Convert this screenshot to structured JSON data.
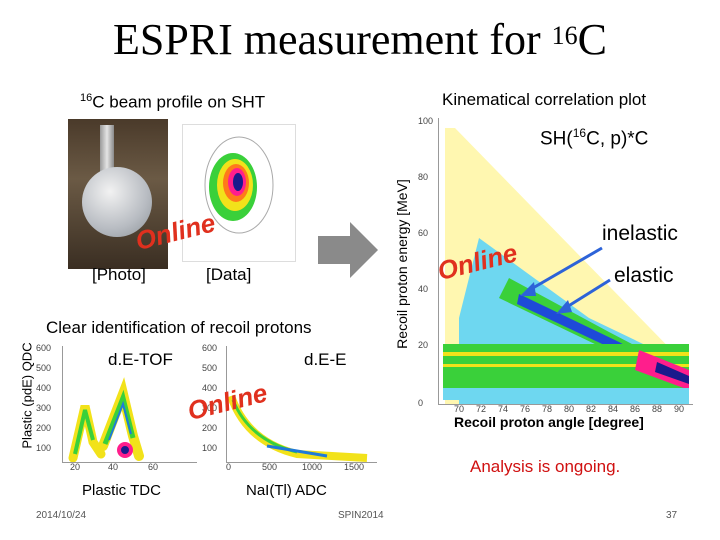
{
  "title": {
    "prefix": "ESPRI measurement for ",
    "sup": "16",
    "suffix": "C"
  },
  "left_top": {
    "heading_sup": "16",
    "heading_text": "C beam profile on SHT",
    "photo_label": "[Photo]",
    "data_label": "[Data]",
    "online": "Online"
  },
  "left_bottom": {
    "heading": "Clear identification of recoil protons",
    "y_axis": "Plastic (pdE) QDC",
    "plot1_label": "d.E-TOF",
    "plot2_label": "d.E-E",
    "online": "Online",
    "x_label_1": "Plastic TDC",
    "x_label_2": "NaI(Tl) ADC",
    "y_ticks": [
      "600",
      "500",
      "400",
      "300",
      "200",
      "100"
    ],
    "y_ticks_2": [
      "600",
      "500",
      "400",
      "300",
      "200",
      "100"
    ],
    "x_ticks_1": [
      "20",
      "40",
      "60"
    ],
    "x_ticks_2": [
      "0",
      "500",
      "1000",
      "1500"
    ]
  },
  "right": {
    "heading": "Kinematical correlation plot",
    "reaction": "SH(",
    "reaction_sup": "16",
    "reaction_mid": "C, p)*C",
    "y_axis": "Recoil proton energy [MeV]",
    "x_axis": "Recoil proton angle [degree]",
    "online": "Online",
    "inelastic": "inelastic",
    "elastic": "elastic",
    "y_ticks": [
      "100",
      "80",
      "60",
      "40",
      "20",
      "0"
    ],
    "x_ticks": [
      "70",
      "72",
      "74",
      "76",
      "78",
      "80",
      "82",
      "84",
      "86",
      "88",
      "90"
    ]
  },
  "status": "Analysis is ongoing.",
  "footer": {
    "date": "2014/10/24",
    "conference": "SPIN2014",
    "page": "37"
  },
  "colors": {
    "online": "#e0301e",
    "status": "#d01010",
    "arrow_blue": "#2d63d8",
    "arrow_gray": "#8a8a8a"
  }
}
